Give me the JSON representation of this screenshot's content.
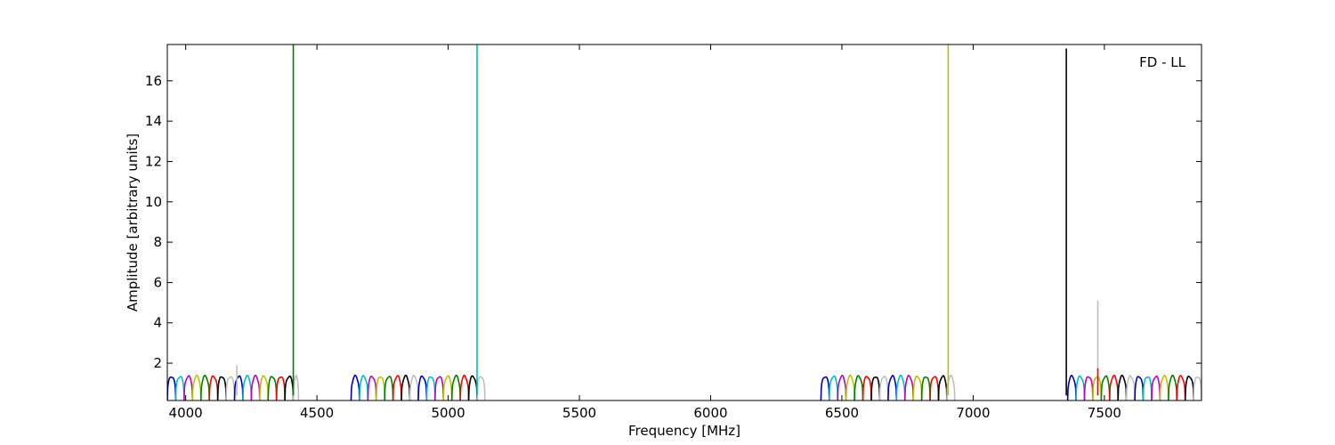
{
  "chart_data": {
    "type": "line",
    "title": "",
    "annotation": "FD - LL",
    "legend_position": "top-right",
    "xlabel": "Frequency [MHz]",
    "ylabel": "Amplitude [arbitrary units]",
    "xlim": [
      3930,
      7870
    ],
    "ylim": [
      0.15,
      17.8
    ],
    "x_ticks": [
      4000,
      4500,
      5000,
      5500,
      6000,
      6500,
      7000,
      7500
    ],
    "y_ticks": [
      2,
      4,
      6,
      8,
      10,
      12,
      14,
      16
    ],
    "grid": false,
    "colors": [
      "#0000bf",
      "#00bfbf",
      "#bf00bf",
      "#bfbf00",
      "#008000",
      "#ff0000",
      "#000000",
      "#bfbfbf"
    ],
    "bands": [
      {
        "x_start": 3930,
        "x_end": 4430,
        "channel_width": 32,
        "dip": 0.15,
        "peak": 1.35
      },
      {
        "x_start": 4630,
        "x_end": 5140,
        "channel_width": 32,
        "dip": 0.15,
        "peak": 1.35
      },
      {
        "x_start": 6420,
        "x_end": 6930,
        "channel_width": 32,
        "dip": 0.15,
        "peak": 1.35
      },
      {
        "x_start": 7360,
        "x_end": 7870,
        "channel_width": 32,
        "dip": 0.15,
        "peak": 1.35
      }
    ],
    "spikes": [
      {
        "x": 4195,
        "y": 1.9,
        "color": "#bfbfbf"
      },
      {
        "x": 4410,
        "y": 17.8,
        "color": "#008000"
      },
      {
        "x": 5110,
        "y": 17.8,
        "color": "#00bfbf"
      },
      {
        "x": 6905,
        "y": 17.8,
        "color": "#bfbf00"
      },
      {
        "x": 7355,
        "y": 17.6,
        "color": "#000000"
      },
      {
        "x": 7475,
        "y": 5.1,
        "color": "#bfbfbf"
      },
      {
        "x": 7475,
        "y": 1.75,
        "color": "#ff0000"
      }
    ]
  }
}
